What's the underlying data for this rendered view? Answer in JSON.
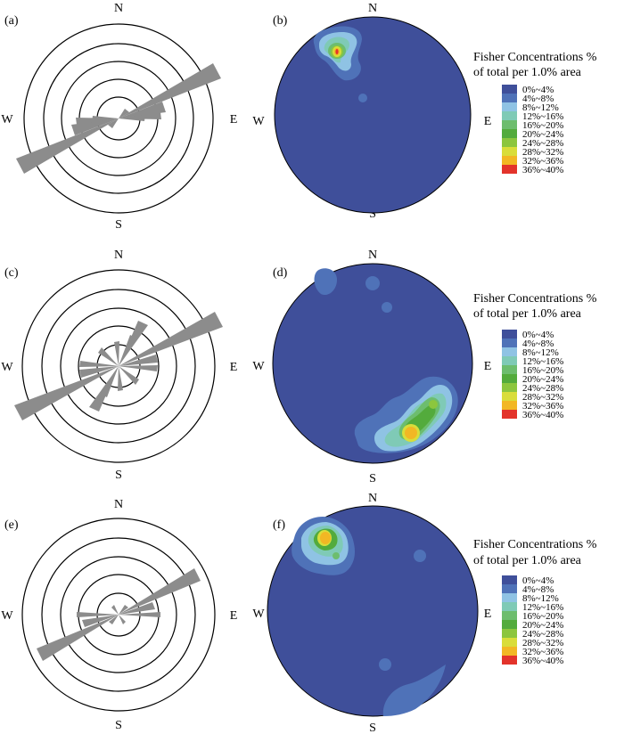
{
  "colors": {
    "rose_petal": "#8c8c8c",
    "stereonet_background": "#3f4f9a",
    "scale": [
      "#3f4f9a",
      "#4f72b8",
      "#8fc3e4",
      "#7fcab6",
      "#6dbd6e",
      "#53ab3c",
      "#8cc63e",
      "#d9dd3a",
      "#f2b724",
      "#e3332b"
    ]
  },
  "directions": {
    "n": "N",
    "s": "S",
    "e": "E",
    "w": "W"
  },
  "legend": {
    "title_line1": "Fisher Concentrations %",
    "title_line2": "of total per 1.0%  area",
    "classes": [
      "0%~4%",
      "4%~8%",
      "8%~12%",
      "12%~16%",
      "16%~20%",
      "20%~24%",
      "24%~28%",
      "28%~32%",
      "32%~36%",
      "36%~40%"
    ]
  },
  "rows": [
    {
      "rose_label": "(a)",
      "stereonet_label": "(b)"
    },
    {
      "rose_label": "(c)",
      "stereonet_label": "(d)"
    },
    {
      "rose_label": "(e)",
      "stereonet_label": "(f)"
    }
  ],
  "rose_diagrams": [
    {
      "dominant_strike": "NE-SW (about 65°)"
    },
    {
      "dominant_strike": "NE-SW (about 65°)"
    },
    {
      "dominant_strike": "NE-SW (about 60°)"
    }
  ],
  "stereonets": [
    {
      "max_concentration_position": "north-northwest, near primitive",
      "secondary_spot": "small spot near center-north"
    },
    {
      "max_concentration_position": "south-southeast",
      "secondary_spot": "small spots in north"
    },
    {
      "max_concentration_position": "northwest, near primitive",
      "secondary_spot": "spots near south and east"
    }
  ]
}
